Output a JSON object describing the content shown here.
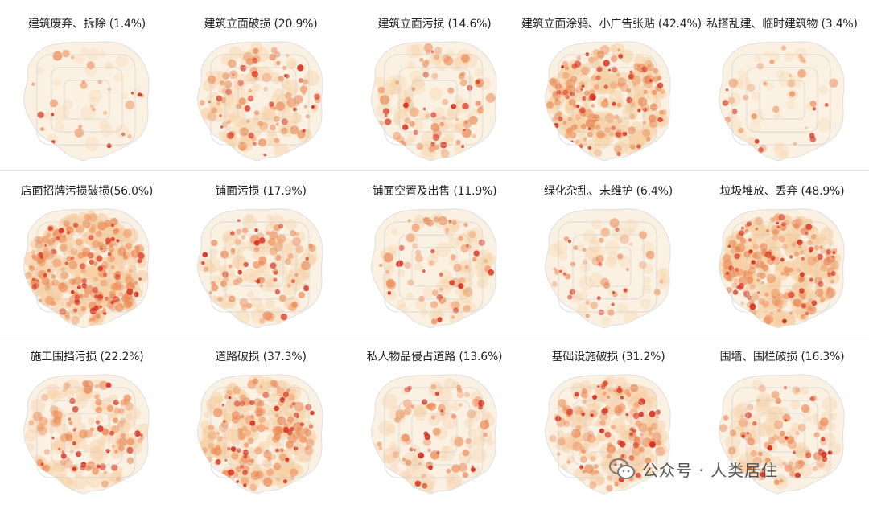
{
  "maps": [
    {
      "title": "建筑废弃、拆除 (1.4%)",
      "percent": 1.4
    },
    {
      "title": "建筑立面破损 (20.9%)",
      "percent": 20.9
    },
    {
      "title": "建筑立面污损 (14.6%)",
      "percent": 14.6
    },
    {
      "title": "建筑立面涂鸦、小广告张贴 (42.4%)",
      "percent": 42.4
    },
    {
      "title": "私搭乱建、临时建筑物 (3.4%)",
      "percent": 3.4
    },
    {
      "title": "店面招牌污损破损(56.0%)",
      "percent": 56.0
    },
    {
      "title": "铺面污损 (17.9%)",
      "percent": 17.9
    },
    {
      "title": "铺面空置及出售 (11.9%)",
      "percent": 11.9
    },
    {
      "title": "绿化杂乱、未维护 (6.4%)",
      "percent": 6.4
    },
    {
      "title": "垃圾堆放、丢弃 (48.9%)",
      "percent": 48.9
    },
    {
      "title": "施工围挡污损 (22.2%)",
      "percent": 22.2
    },
    {
      "title": "道路破损 (37.3%)",
      "percent": 37.3
    },
    {
      "title": "私人物品侵占道路 (13.6%)",
      "percent": 13.6
    },
    {
      "title": "基础设施破损 (31.2%)",
      "percent": 31.2
    },
    {
      "title": "围墙、围栏破损 (16.3%)",
      "percent": 16.3
    }
  ],
  "watermark": {
    "text": "公众号 · 人类居住",
    "icon": "wechat-icon"
  },
  "colors": {
    "base": "#fbf1e3",
    "low": "#f6cfa3",
    "mid": "#ec8a57",
    "high": "#d7301f",
    "ring": "#cdcdcd"
  }
}
